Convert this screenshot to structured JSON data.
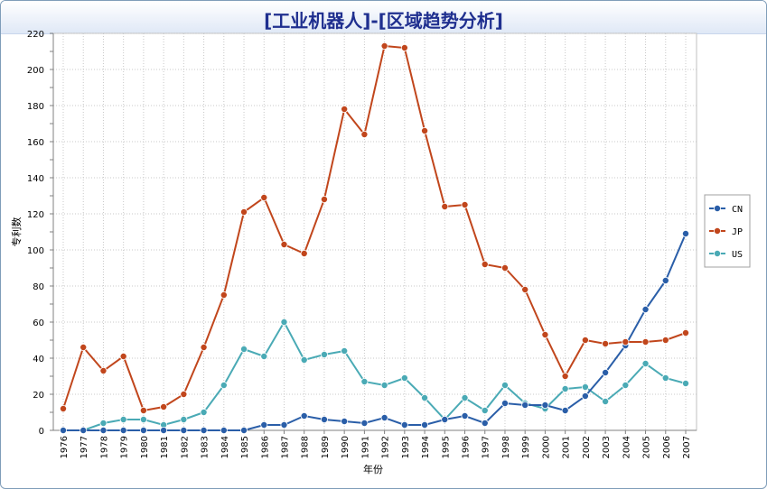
{
  "chart_data": {
    "type": "line",
    "title": "[工业机器人]-[区域趋势分析]",
    "xlabel": "年份",
    "ylabel": "专利数",
    "ylim": [
      0,
      220
    ],
    "ytick_step": 20,
    "grid": true,
    "legend_position": "right",
    "x": [
      "1976",
      "1977",
      "1978",
      "1979",
      "1980",
      "1981",
      "1982",
      "1983",
      "1984",
      "1985",
      "1986",
      "1987",
      "1988",
      "1989",
      "1990",
      "1991",
      "1992",
      "1993",
      "1994",
      "1995",
      "1996",
      "1997",
      "1998",
      "1999",
      "2000",
      "2001",
      "2002",
      "2003",
      "2004",
      "2005",
      "2006",
      "2007"
    ],
    "series": [
      {
        "name": "CN",
        "color": "#2a5ea8",
        "values": [
          0,
          0,
          0,
          0,
          0,
          0,
          0,
          0,
          0,
          0,
          3,
          3,
          8,
          6,
          5,
          4,
          7,
          3,
          3,
          6,
          8,
          4,
          15,
          14,
          14,
          11,
          19,
          32,
          47,
          67,
          83,
          109
        ]
      },
      {
        "name": "JP",
        "color": "#c1461c",
        "values": [
          12,
          46,
          33,
          41,
          11,
          13,
          20,
          46,
          75,
          121,
          129,
          103,
          98,
          128,
          178,
          164,
          213,
          212,
          166,
          124,
          125,
          92,
          90,
          78,
          53,
          30,
          50,
          48,
          49,
          49,
          50,
          54
        ]
      },
      {
        "name": "US",
        "color": "#4aaab5",
        "values": [
          0,
          0,
          4,
          6,
          6,
          3,
          6,
          10,
          25,
          45,
          41,
          60,
          39,
          42,
          44,
          27,
          25,
          29,
          18,
          6,
          18,
          11,
          25,
          15,
          12,
          23,
          24,
          16,
          25,
          37,
          29,
          26
        ]
      }
    ]
  }
}
